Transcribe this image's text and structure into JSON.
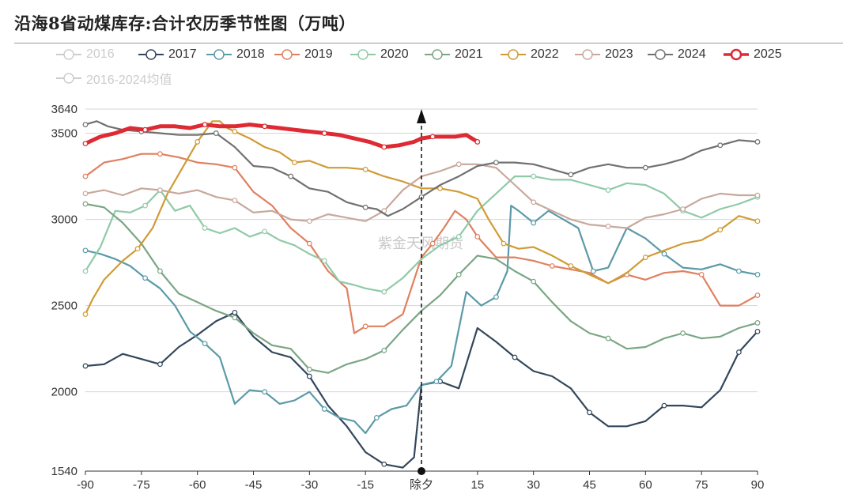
{
  "title": "沿海8省动煤库存:合计农历季节性图（万吨）",
  "watermark": "紫金天风期货",
  "chart_data": {
    "type": "line",
    "x_range": [
      -90,
      90
    ],
    "ylim": [
      1540,
      3640
    ],
    "x_ticks": [
      {
        "v": -90,
        "label": "-90"
      },
      {
        "v": -75,
        "label": "-75"
      },
      {
        "v": -60,
        "label": "-60"
      },
      {
        "v": -45,
        "label": "-45"
      },
      {
        "v": -30,
        "label": "-30"
      },
      {
        "v": -15,
        "label": "-15"
      },
      {
        "v": 0,
        "label": "除夕"
      },
      {
        "v": 15,
        "label": "15"
      },
      {
        "v": 30,
        "label": "30"
      },
      {
        "v": 45,
        "label": "45"
      },
      {
        "v": 60,
        "label": "60"
      },
      {
        "v": 75,
        "label": "75"
      },
      {
        "v": 90,
        "label": "90"
      }
    ],
    "y_ticks": [
      {
        "v": 3640,
        "label": "3640"
      },
      {
        "v": 3500,
        "label": "3500"
      },
      {
        "v": 3000,
        "label": "3000"
      },
      {
        "v": 2500,
        "label": "2500"
      },
      {
        "v": 2000,
        "label": "2000"
      },
      {
        "v": 1540,
        "label": "1540"
      }
    ],
    "event_marker": {
      "x": 0,
      "label": "除夕"
    },
    "series": [
      {
        "name": "2016",
        "color": "#cccccc",
        "hidden": true,
        "x": [],
        "y": []
      },
      {
        "name": "2017",
        "color": "#33475b",
        "x": [
          -90,
          -85,
          -80,
          -75,
          -70,
          -65,
          -60,
          -55,
          -50,
          -45,
          -40,
          -35,
          -30,
          -25,
          -20,
          -15,
          -10,
          -5,
          -2,
          0,
          5,
          10,
          15,
          20,
          25,
          30,
          35,
          40,
          45,
          50,
          55,
          60,
          65,
          70,
          75,
          80,
          85,
          90
        ],
        "y": [
          2150,
          2160,
          2220,
          2190,
          2160,
          2260,
          2330,
          2410,
          2460,
          2320,
          2230,
          2200,
          2090,
          1920,
          1800,
          1650,
          1580,
          1560,
          1620,
          2040,
          2060,
          2020,
          2370,
          2290,
          2200,
          2120,
          2090,
          2020,
          1880,
          1800,
          1800,
          1830,
          1920,
          1920,
          1910,
          2010,
          2230,
          2350
        ]
      },
      {
        "name": "2018",
        "color": "#5b9aa8",
        "x": [
          -90,
          -86,
          -82,
          -78,
          -74,
          -70,
          -66,
          -62,
          -58,
          -54,
          -50,
          -46,
          -42,
          -38,
          -34,
          -30,
          -26,
          -22,
          -18,
          -15,
          -12,
          -8,
          -4,
          0,
          4,
          8,
          12,
          16,
          20,
          23,
          24,
          26,
          30,
          34,
          38,
          42,
          46,
          50,
          55,
          60,
          65,
          70,
          75,
          80,
          85,
          90
        ],
        "y": [
          2820,
          2800,
          2770,
          2730,
          2660,
          2600,
          2500,
          2350,
          2280,
          2200,
          1930,
          2010,
          2000,
          1930,
          1950,
          2000,
          1900,
          1850,
          1830,
          1760,
          1850,
          1900,
          1920,
          2040,
          2060,
          2150,
          2580,
          2500,
          2550,
          2700,
          3080,
          3050,
          2980,
          3050,
          3000,
          2950,
          2700,
          2720,
          2950,
          2890,
          2800,
          2720,
          2710,
          2740,
          2700,
          2680
        ]
      },
      {
        "name": "2019",
        "color": "#e08060",
        "x": [
          -90,
          -85,
          -80,
          -75,
          -70,
          -65,
          -60,
          -55,
          -50,
          -45,
          -40,
          -35,
          -30,
          -25,
          -20,
          -18,
          -15,
          -10,
          -5,
          0,
          3,
          6,
          9,
          12,
          15,
          20,
          25,
          30,
          35,
          40,
          45,
          50,
          55,
          60,
          65,
          70,
          75,
          80,
          85,
          90
        ],
        "y": [
          3250,
          3330,
          3350,
          3380,
          3380,
          3360,
          3330,
          3320,
          3300,
          3160,
          3080,
          2950,
          2860,
          2700,
          2600,
          2340,
          2380,
          2380,
          2450,
          2780,
          2860,
          2950,
          3050,
          3000,
          2900,
          2780,
          2780,
          2760,
          2730,
          2710,
          2690,
          2630,
          2680,
          2650,
          2690,
          2700,
          2680,
          2500,
          2500,
          2560
        ]
      },
      {
        "name": "2020",
        "color": "#8fcaa8",
        "x": [
          -90,
          -86,
          -82,
          -78,
          -74,
          -70,
          -66,
          -62,
          -58,
          -54,
          -50,
          -46,
          -42,
          -38,
          -34,
          -30,
          -26,
          -22,
          -18,
          -15,
          -10,
          -5,
          0,
          5,
          10,
          15,
          20,
          25,
          30,
          35,
          40,
          45,
          50,
          55,
          60,
          65,
          70,
          75,
          80,
          85,
          90
        ],
        "y": [
          2700,
          2840,
          3050,
          3040,
          3080,
          3170,
          3050,
          3080,
          2950,
          2920,
          2950,
          2900,
          2930,
          2880,
          2850,
          2800,
          2760,
          2640,
          2620,
          2600,
          2580,
          2660,
          2770,
          2850,
          2900,
          3050,
          3150,
          3250,
          3250,
          3230,
          3230,
          3200,
          3170,
          3210,
          3200,
          3150,
          3050,
          3010,
          3060,
          3090,
          3130
        ]
      },
      {
        "name": "2021",
        "color": "#7aa684",
        "x": [
          -90,
          -85,
          -80,
          -75,
          -70,
          -65,
          -60,
          -55,
          -50,
          -45,
          -40,
          -35,
          -30,
          -25,
          -20,
          -15,
          -10,
          -5,
          0,
          5,
          10,
          15,
          20,
          25,
          30,
          35,
          40,
          45,
          50,
          55,
          60,
          65,
          70,
          75,
          80,
          85,
          90
        ],
        "y": [
          3090,
          3070,
          2980,
          2860,
          2700,
          2570,
          2520,
          2470,
          2430,
          2340,
          2270,
          2250,
          2130,
          2110,
          2160,
          2190,
          2240,
          2360,
          2470,
          2560,
          2680,
          2790,
          2770,
          2700,
          2640,
          2520,
          2410,
          2340,
          2310,
          2250,
          2260,
          2310,
          2340,
          2310,
          2320,
          2370,
          2400
        ]
      },
      {
        "name": "2022",
        "color": "#d09b35",
        "x": [
          -90,
          -88,
          -85,
          -80,
          -76,
          -72,
          -68,
          -64,
          -60,
          -56,
          -54,
          -52,
          -50,
          -46,
          -42,
          -38,
          -34,
          -30,
          -25,
          -20,
          -15,
          -10,
          -5,
          0,
          5,
          10,
          15,
          18,
          22,
          26,
          30,
          35,
          40,
          45,
          50,
          55,
          60,
          65,
          70,
          75,
          80,
          85,
          90
        ],
        "y": [
          2450,
          2540,
          2650,
          2760,
          2830,
          2950,
          3150,
          3300,
          3450,
          3570,
          3570,
          3530,
          3510,
          3470,
          3420,
          3390,
          3330,
          3340,
          3300,
          3300,
          3290,
          3250,
          3220,
          3180,
          3180,
          3160,
          3120,
          3000,
          2860,
          2830,
          2840,
          2790,
          2730,
          2680,
          2630,
          2690,
          2780,
          2820,
          2860,
          2880,
          2940,
          3020,
          2990
        ]
      },
      {
        "name": "2023",
        "color": "#c9a89c",
        "x": [
          -90,
          -85,
          -80,
          -75,
          -70,
          -65,
          -60,
          -55,
          -50,
          -45,
          -40,
          -35,
          -30,
          -25,
          -20,
          -15,
          -10,
          -5,
          0,
          5,
          10,
          15,
          20,
          25,
          30,
          35,
          40,
          45,
          50,
          55,
          60,
          65,
          70,
          75,
          80,
          85,
          90
        ],
        "y": [
          3150,
          3170,
          3140,
          3180,
          3170,
          3150,
          3170,
          3130,
          3110,
          3040,
          3050,
          3000,
          2990,
          3030,
          3010,
          2990,
          3050,
          3170,
          3250,
          3280,
          3320,
          3320,
          3300,
          3200,
          3100,
          3050,
          3000,
          2970,
          2960,
          2950,
          3010,
          3030,
          3060,
          3120,
          3150,
          3140,
          3140
        ]
      },
      {
        "name": "2024",
        "color": "#707070",
        "x": [
          -90,
          -87,
          -84,
          -80,
          -75,
          -70,
          -65,
          -60,
          -55,
          -50,
          -45,
          -40,
          -35,
          -30,
          -25,
          -20,
          -15,
          -12,
          -9,
          -5,
          0,
          5,
          10,
          15,
          20,
          25,
          30,
          35,
          40,
          45,
          50,
          55,
          60,
          65,
          70,
          75,
          80,
          85,
          90
        ],
        "y": [
          3550,
          3570,
          3540,
          3520,
          3510,
          3500,
          3490,
          3490,
          3500,
          3420,
          3310,
          3300,
          3250,
          3180,
          3160,
          3100,
          3070,
          3060,
          3020,
          3060,
          3130,
          3200,
          3250,
          3310,
          3330,
          3330,
          3320,
          3290,
          3260,
          3300,
          3320,
          3300,
          3300,
          3320,
          3350,
          3400,
          3430,
          3460,
          3450
        ]
      },
      {
        "name": "2025",
        "color": "#dd2a33",
        "bold": true,
        "x": [
          -90,
          -86,
          -82,
          -78,
          -74,
          -70,
          -66,
          -62,
          -58,
          -54,
          -50,
          -46,
          -42,
          -38,
          -34,
          -30,
          -26,
          -22,
          -18,
          -14,
          -10,
          -6,
          -2,
          0,
          3,
          6,
          9,
          12,
          15
        ],
        "y": [
          3440,
          3480,
          3500,
          3530,
          3520,
          3540,
          3540,
          3530,
          3550,
          3540,
          3540,
          3550,
          3540,
          3530,
          3520,
          3510,
          3500,
          3490,
          3470,
          3450,
          3420,
          3430,
          3450,
          3470,
          3480,
          3480,
          3480,
          3490,
          3450
        ]
      },
      {
        "name": "2016-2024均值",
        "color": "#cccccc",
        "hidden": true,
        "x": [],
        "y": []
      }
    ]
  }
}
